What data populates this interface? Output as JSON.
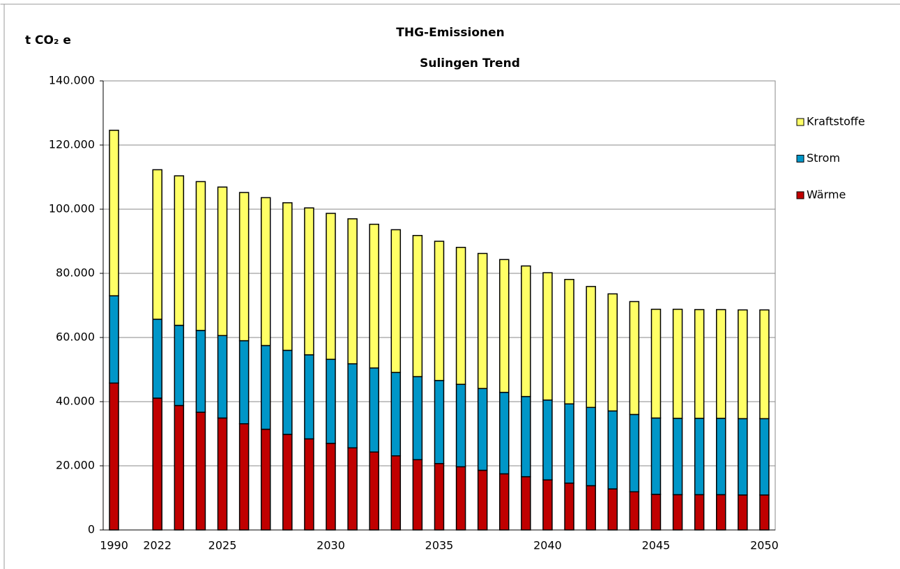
{
  "chart_data": {
    "type": "stacked_bar",
    "title": "THG-Emissionen",
    "subtitle": "Sulingen Trend",
    "y_label": "t CO₂ e",
    "categories": [
      "1990",
      null,
      "2022",
      null,
      null,
      "2025",
      null,
      null,
      null,
      null,
      "2030",
      null,
      null,
      null,
      null,
      "2035",
      null,
      null,
      null,
      null,
      "2040",
      null,
      null,
      null,
      null,
      "2045",
      null,
      null,
      null,
      null,
      "2050"
    ],
    "series": [
      {
        "name": "Wärme",
        "color": "#c00000",
        "values": [
          45800,
          null,
          41100,
          38800,
          36700,
          34900,
          33100,
          31400,
          29800,
          28400,
          27000,
          25600,
          24300,
          23100,
          21900,
          20700,
          19700,
          18600,
          17500,
          16600,
          15600,
          14600,
          13800,
          12800,
          11900,
          11100,
          11000,
          11000,
          11000,
          10900,
          10900
        ]
      },
      {
        "name": "Strom",
        "color": "#0096c8",
        "values": [
          27200,
          null,
          24600,
          25000,
          25500,
          25700,
          25900,
          26100,
          26200,
          26200,
          26200,
          26200,
          26200,
          26000,
          25900,
          25900,
          25700,
          25500,
          25400,
          25000,
          24900,
          24700,
          24400,
          24300,
          24100,
          23800,
          23800,
          23800,
          23800,
          23800,
          23800
        ]
      },
      {
        "name": "Kraftstoffe",
        "color": "#ffff66",
        "values": [
          51600,
          null,
          46600,
          46600,
          46400,
          46300,
          46200,
          46100,
          46000,
          45800,
          45500,
          45200,
          44800,
          44500,
          44000,
          43400,
          42700,
          42100,
          41400,
          40700,
          39700,
          38800,
          37700,
          36500,
          35200,
          33900,
          34000,
          33900,
          33900,
          33900,
          33900
        ]
      }
    ],
    "ylim": [
      0,
      140000
    ],
    "yticks": [
      0,
      {
        "value": 20000,
        "label": "20.000"
      },
      {
        "value": 40000,
        "label": "40.000"
      },
      {
        "value": 60000,
        "label": "60.000"
      },
      {
        "value": 80000,
        "label": "80.000"
      },
      {
        "value": 100000,
        "label": "100.000"
      },
      {
        "value": 120000,
        "label": "120.000"
      },
      {
        "value": 140000,
        "label": "140.000"
      }
    ],
    "grid": true,
    "legend": "right"
  }
}
